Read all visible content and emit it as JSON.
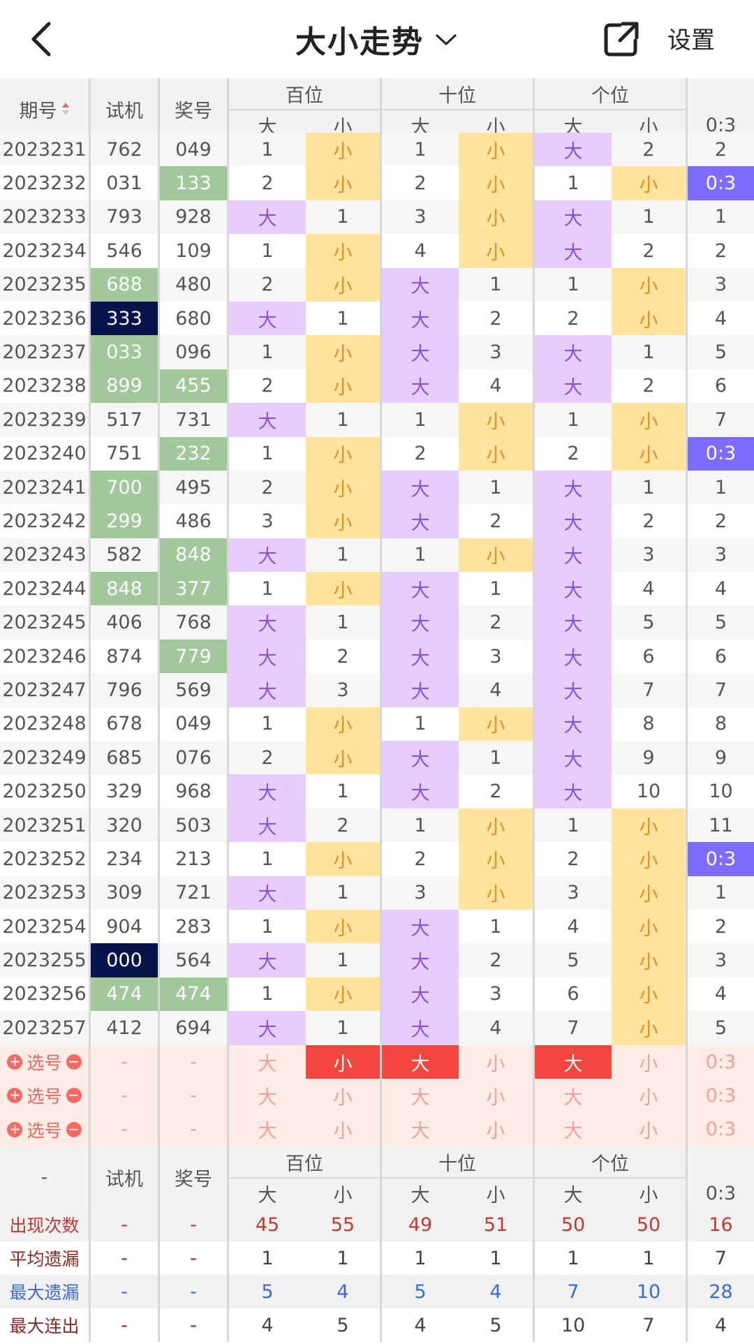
{
  "header": {
    "title": "大小走势",
    "settings_label": "设置"
  },
  "table_header": {
    "col_issue": "期号",
    "col_trial": "试机",
    "col_draw": "奖号",
    "group_hundreds": "百位",
    "group_tens": "十位",
    "group_units": "个位",
    "big": "大",
    "small": "小",
    "ratio": "0:3"
  },
  "rows": [
    {
      "issue": "2023231",
      "trial": "762",
      "draw": "049",
      "h": [
        "1",
        "小"
      ],
      "t": [
        "1",
        "小"
      ],
      "u": [
        "大",
        "2"
      ],
      "r": "2"
    },
    {
      "issue": "2023232",
      "trial": "031",
      "draw": "133",
      "h": [
        "2",
        "小"
      ],
      "t": [
        "2",
        "小"
      ],
      "u": [
        "1",
        "小"
      ],
      "r": "0:3"
    },
    {
      "issue": "2023233",
      "trial": "793",
      "draw": "928",
      "h": [
        "大",
        "1"
      ],
      "t": [
        "3",
        "小"
      ],
      "u": [
        "大",
        "1"
      ],
      "r": "1"
    },
    {
      "issue": "2023234",
      "trial": "546",
      "draw": "109",
      "h": [
        "1",
        "小"
      ],
      "t": [
        "4",
        "小"
      ],
      "u": [
        "大",
        "2"
      ],
      "r": "2"
    },
    {
      "issue": "2023235",
      "trial": "688",
      "draw": "480",
      "h": [
        "2",
        "小"
      ],
      "t": [
        "大",
        "1"
      ],
      "u": [
        "1",
        "小"
      ],
      "r": "3"
    },
    {
      "issue": "2023236",
      "trial": "333",
      "draw": "680",
      "h": [
        "大",
        "1"
      ],
      "t": [
        "大",
        "2"
      ],
      "u": [
        "2",
        "小"
      ],
      "r": "4"
    },
    {
      "issue": "2023237",
      "trial": "033",
      "draw": "096",
      "h": [
        "1",
        "小"
      ],
      "t": [
        "大",
        "3"
      ],
      "u": [
        "大",
        "1"
      ],
      "r": "5"
    },
    {
      "issue": "2023238",
      "trial": "899",
      "draw": "455",
      "h": [
        "2",
        "小"
      ],
      "t": [
        "大",
        "4"
      ],
      "u": [
        "大",
        "2"
      ],
      "r": "6"
    },
    {
      "issue": "2023239",
      "trial": "517",
      "draw": "731",
      "h": [
        "大",
        "1"
      ],
      "t": [
        "1",
        "小"
      ],
      "u": [
        "1",
        "小"
      ],
      "r": "7"
    },
    {
      "issue": "2023240",
      "trial": "751",
      "draw": "232",
      "h": [
        "1",
        "小"
      ],
      "t": [
        "2",
        "小"
      ],
      "u": [
        "2",
        "小"
      ],
      "r": "0:3"
    },
    {
      "issue": "2023241",
      "trial": "700",
      "draw": "495",
      "h": [
        "2",
        "小"
      ],
      "t": [
        "大",
        "1"
      ],
      "u": [
        "大",
        "1"
      ],
      "r": "1"
    },
    {
      "issue": "2023242",
      "trial": "299",
      "draw": "486",
      "h": [
        "3",
        "小"
      ],
      "t": [
        "大",
        "2"
      ],
      "u": [
        "大",
        "2"
      ],
      "r": "2"
    },
    {
      "issue": "2023243",
      "trial": "582",
      "draw": "848",
      "h": [
        "大",
        "1"
      ],
      "t": [
        "1",
        "小"
      ],
      "u": [
        "大",
        "3"
      ],
      "r": "3"
    },
    {
      "issue": "2023244",
      "trial": "848",
      "draw": "377",
      "h": [
        "1",
        "小"
      ],
      "t": [
        "大",
        "1"
      ],
      "u": [
        "大",
        "4"
      ],
      "r": "4"
    },
    {
      "issue": "2023245",
      "trial": "406",
      "draw": "768",
      "h": [
        "大",
        "1"
      ],
      "t": [
        "大",
        "2"
      ],
      "u": [
        "大",
        "5"
      ],
      "r": "5"
    },
    {
      "issue": "2023246",
      "trial": "874",
      "draw": "779",
      "h": [
        "大",
        "2"
      ],
      "t": [
        "大",
        "3"
      ],
      "u": [
        "大",
        "6"
      ],
      "r": "6"
    },
    {
      "issue": "2023247",
      "trial": "796",
      "draw": "569",
      "h": [
        "大",
        "3"
      ],
      "t": [
        "大",
        "4"
      ],
      "u": [
        "大",
        "7"
      ],
      "r": "7"
    },
    {
      "issue": "2023248",
      "trial": "678",
      "draw": "049",
      "h": [
        "1",
        "小"
      ],
      "t": [
        "1",
        "小"
      ],
      "u": [
        "大",
        "8"
      ],
      "r": "8"
    },
    {
      "issue": "2023249",
      "trial": "685",
      "draw": "076",
      "h": [
        "2",
        "小"
      ],
      "t": [
        "大",
        "1"
      ],
      "u": [
        "大",
        "9"
      ],
      "r": "9"
    },
    {
      "issue": "2023250",
      "trial": "329",
      "draw": "968",
      "h": [
        "大",
        "1"
      ],
      "t": [
        "大",
        "2"
      ],
      "u": [
        "大",
        "10"
      ],
      "r": "10"
    },
    {
      "issue": "2023251",
      "trial": "320",
      "draw": "503",
      "h": [
        "大",
        "2"
      ],
      "t": [
        "1",
        "小"
      ],
      "u": [
        "1",
        "小"
      ],
      "r": "11"
    },
    {
      "issue": "2023252",
      "trial": "234",
      "draw": "213",
      "h": [
        "1",
        "小"
      ],
      "t": [
        "2",
        "小"
      ],
      "u": [
        "2",
        "小"
      ],
      "r": "0:3"
    },
    {
      "issue": "2023253",
      "trial": "309",
      "draw": "721",
      "h": [
        "大",
        "1"
      ],
      "t": [
        "3",
        "小"
      ],
      "u": [
        "3",
        "小"
      ],
      "r": "1"
    },
    {
      "issue": "2023254",
      "trial": "904",
      "draw": "283",
      "h": [
        "1",
        "小"
      ],
      "t": [
        "大",
        "1"
      ],
      "u": [
        "4",
        "小"
      ],
      "r": "2"
    },
    {
      "issue": "2023255",
      "trial": "000",
      "draw": "564",
      "h": [
        "大",
        "1"
      ],
      "t": [
        "大",
        "2"
      ],
      "u": [
        "5",
        "小"
      ],
      "r": "3"
    },
    {
      "issue": "2023256",
      "trial": "474",
      "draw": "474",
      "h": [
        "1",
        "小"
      ],
      "t": [
        "大",
        "3"
      ],
      "u": [
        "6",
        "小"
      ],
      "r": "4"
    },
    {
      "issue": "2023257",
      "trial": "412",
      "draw": "694",
      "h": [
        "大",
        "1"
      ],
      "t": [
        "大",
        "4"
      ],
      "u": [
        "7",
        "小"
      ],
      "r": "5"
    }
  ],
  "select_rows": [
    {
      "label": "选号",
      "trial": "-",
      "draw": "-",
      "cells": [
        "大",
        "小",
        "大",
        "小",
        "大",
        "小"
      ],
      "ratio": "0:3"
    },
    {
      "label": "选号",
      "trial": "-",
      "draw": "-",
      "cells": [
        "大",
        "小",
        "大",
        "小",
        "大",
        "小"
      ],
      "ratio": "0:3"
    },
    {
      "label": "选号",
      "trial": "-",
      "draw": "-",
      "cells": [
        "大",
        "小",
        "大",
        "小",
        "大",
        "小"
      ],
      "ratio": "0:3"
    }
  ],
  "stats_header": {
    "label": "-",
    "col_trial": "试机",
    "col_draw": "奖号",
    "group_hundreds": "百位",
    "group_tens": "十位",
    "group_units": "个位",
    "big": "大",
    "small": "小",
    "ratio": "0:3"
  },
  "stats": [
    {
      "label": "出现次数",
      "trial": "-",
      "draw": "-",
      "values": [
        "45",
        "55",
        "49",
        "51",
        "50",
        "50",
        "16"
      ]
    },
    {
      "label": "平均遗漏",
      "trial": "-",
      "draw": "-",
      "values": [
        "1",
        "1",
        "1",
        "1",
        "1",
        "1",
        "7"
      ]
    },
    {
      "label": "最大遗漏",
      "trial": "-",
      "draw": "-",
      "values": [
        "5",
        "4",
        "5",
        "4",
        "7",
        "10",
        "28"
      ]
    },
    {
      "label": "最大连出",
      "trial": "-",
      "draw": "-",
      "values": [
        "4",
        "5",
        "4",
        "5",
        "10",
        "7",
        "4"
      ]
    }
  ],
  "colors": {
    "big_bg": "#e6cdfd",
    "small_bg": "#ffe4a0",
    "green_highlight": "#a1c79a",
    "navy_highlight": "#07134c",
    "ratio_highlight": "#7c6cff",
    "select_red": "#f2463e"
  },
  "icons": [
    "back-arrow-icon",
    "chevron-down-icon",
    "share-icon",
    "sort-icon",
    "plus-circle-icon",
    "minus-circle-icon"
  ]
}
